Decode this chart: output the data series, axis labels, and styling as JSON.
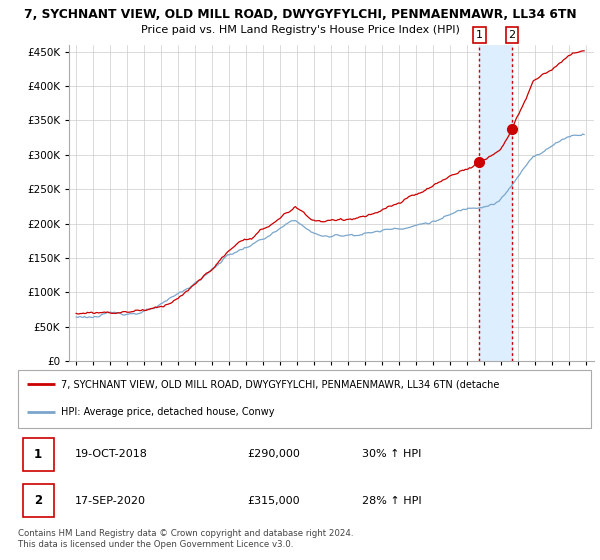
{
  "title1": "7, SYCHNANT VIEW, OLD MILL ROAD, DWYGYFYLCHI, PENMAENMAWR, LL34 6TN",
  "title2": "Price paid vs. HM Land Registry's House Price Index (HPI)",
  "ylim": [
    0,
    460000
  ],
  "yticks": [
    0,
    50000,
    100000,
    150000,
    200000,
    250000,
    300000,
    350000,
    400000,
    450000
  ],
  "ytick_labels": [
    "£0",
    "£50K",
    "£100K",
    "£150K",
    "£200K",
    "£250K",
    "£300K",
    "£350K",
    "£400K",
    "£450K"
  ],
  "legend1_label": "7, SYCHNANT VIEW, OLD MILL ROAD, DWYGYFYLCHI, PENMAENMAWR, LL34 6TN (detache",
  "legend2_label": "HPI: Average price, detached house, Conwy",
  "legend1_color": "#cc0000",
  "legend2_color": "#7aa6cc",
  "marker1_year": 2018,
  "marker1_month": 10,
  "marker1_price": 290000,
  "marker2_year": 2020,
  "marker2_month": 9,
  "marker2_price": 315000,
  "table_row1": [
    "1",
    "19-OCT-2018",
    "£290,000",
    "30% ↑ HPI"
  ],
  "table_row2": [
    "2",
    "17-SEP-2020",
    "£315,000",
    "28% ↑ HPI"
  ],
  "footer": "Contains HM Land Registry data © Crown copyright and database right 2024.\nThis data is licensed under the Open Government Licence v3.0.",
  "grid_color": "#cccccc",
  "vline_color": "#cc0000",
  "shade_color": "#ddeeff",
  "start_year": 1995,
  "end_year": 2025
}
